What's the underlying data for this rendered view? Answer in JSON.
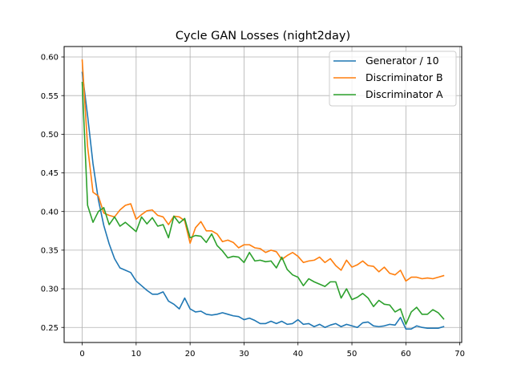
{
  "chart_data": {
    "type": "line",
    "title": "Cycle GAN Losses (night2day)",
    "xlabel": "",
    "ylabel": "",
    "xlim": [
      -3.35,
      70.35
    ],
    "ylim": [
      0.2305,
      0.6135
    ],
    "xticks": [
      0,
      10,
      20,
      30,
      40,
      50,
      60,
      70
    ],
    "yticks": [
      0.25,
      0.3,
      0.35,
      0.4,
      0.45,
      0.5,
      0.55,
      0.6
    ],
    "ytick_labels": [
      "0.25",
      "0.30",
      "0.35",
      "0.40",
      "0.45",
      "0.50",
      "0.55",
      "0.60"
    ],
    "grid": true,
    "legend": "top-right",
    "series": [
      {
        "name": "Generator / 10",
        "color": "#1f77b4",
        "values": [
          0.58,
          0.524,
          0.462,
          0.415,
          0.382,
          0.358,
          0.339,
          0.327,
          0.324,
          0.321,
          0.31,
          0.304,
          0.298,
          0.293,
          0.293,
          0.296,
          0.284,
          0.28,
          0.274,
          0.288,
          0.274,
          0.27,
          0.271,
          0.267,
          0.266,
          0.267,
          0.269,
          0.267,
          0.265,
          0.264,
          0.26,
          0.262,
          0.259,
          0.255,
          0.255,
          0.258,
          0.255,
          0.258,
          0.254,
          0.255,
          0.26,
          0.254,
          0.255,
          0.251,
          0.254,
          0.25,
          0.253,
          0.255,
          0.251,
          0.254,
          0.252,
          0.25,
          0.256,
          0.257,
          0.252,
          0.251,
          0.252,
          0.254,
          0.253,
          0.263,
          0.248,
          0.248,
          0.252,
          0.25,
          0.249,
          0.249,
          0.249,
          0.251
        ]
      },
      {
        "name": "Discriminator B",
        "color": "#ff7f0e",
        "values": [
          0.596,
          0.484,
          0.425,
          0.42,
          0.398,
          0.395,
          0.393,
          0.402,
          0.408,
          0.41,
          0.39,
          0.396,
          0.401,
          0.402,
          0.395,
          0.393,
          0.383,
          0.394,
          0.393,
          0.388,
          0.359,
          0.379,
          0.387,
          0.375,
          0.375,
          0.371,
          0.361,
          0.363,
          0.36,
          0.353,
          0.357,
          0.357,
          0.353,
          0.352,
          0.347,
          0.35,
          0.348,
          0.338,
          0.343,
          0.347,
          0.342,
          0.334,
          0.336,
          0.337,
          0.341,
          0.334,
          0.339,
          0.33,
          0.324,
          0.337,
          0.328,
          0.331,
          0.336,
          0.33,
          0.329,
          0.322,
          0.328,
          0.32,
          0.318,
          0.324,
          0.31,
          0.315,
          0.315,
          0.313,
          0.314,
          0.313,
          0.315,
          0.317
        ]
      },
      {
        "name": "Discriminator A",
        "color": "#2ca02c",
        "values": [
          0.567,
          0.408,
          0.386,
          0.4,
          0.405,
          0.383,
          0.393,
          0.381,
          0.386,
          0.38,
          0.374,
          0.393,
          0.384,
          0.392,
          0.381,
          0.383,
          0.366,
          0.394,
          0.385,
          0.391,
          0.366,
          0.369,
          0.368,
          0.36,
          0.371,
          0.356,
          0.349,
          0.34,
          0.342,
          0.341,
          0.334,
          0.347,
          0.336,
          0.337,
          0.335,
          0.336,
          0.327,
          0.341,
          0.325,
          0.318,
          0.315,
          0.304,
          0.313,
          0.309,
          0.306,
          0.303,
          0.309,
          0.309,
          0.288,
          0.3,
          0.286,
          0.289,
          0.294,
          0.288,
          0.277,
          0.285,
          0.28,
          0.279,
          0.27,
          0.274,
          0.254,
          0.27,
          0.276,
          0.267,
          0.267,
          0.273,
          0.269,
          0.261
        ]
      }
    ]
  }
}
